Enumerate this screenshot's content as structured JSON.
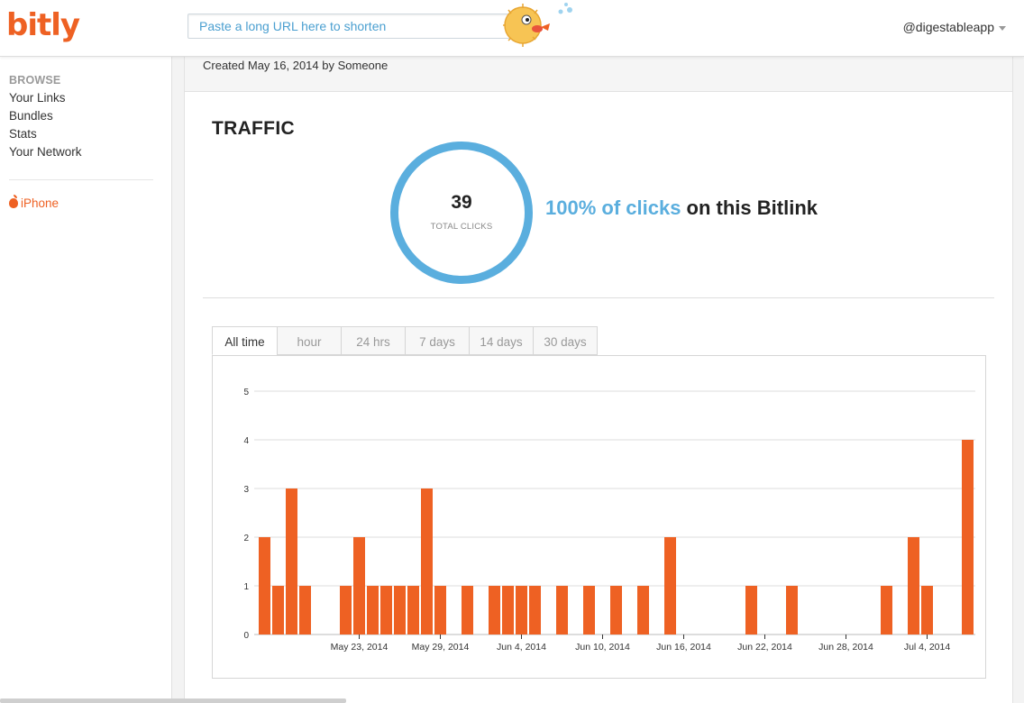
{
  "header": {
    "logo": "bitly",
    "url_placeholder": "Paste a long URL here to shorten",
    "username": "@digestableapp"
  },
  "sidebar": {
    "heading": "BROWSE",
    "items": [
      "Your Links",
      "Bundles",
      "Stats",
      "Your Network"
    ],
    "iphone": "iPhone"
  },
  "main": {
    "created": "Created May 16, 2014 by Someone",
    "traffic_title": "TRAFFIC",
    "total_clicks": "39",
    "total_clicks_label": "TOTAL CLICKS",
    "pct_highlight": "100% of clicks",
    "pct_rest": " on this Bitlink",
    "tabs": [
      "All time",
      "hour",
      "24 hrs",
      "7 days",
      "14 days",
      "30 days"
    ],
    "active_tab": "All time"
  },
  "colors": {
    "accent": "#ee6123",
    "blue": "#5aaede"
  },
  "chart_data": {
    "type": "bar",
    "ylim": [
      0,
      5
    ],
    "yticks": [
      0,
      1,
      2,
      3,
      4,
      5
    ],
    "bar_color": "#ee6123",
    "x_tick_labels": [
      "May 23, 2014",
      "May 29, 2014",
      "Jun 4, 2014",
      "Jun 10, 2014",
      "Jun 16, 2014",
      "Jun 22, 2014",
      "Jun 28, 2014",
      "Jul 4, 2014"
    ],
    "categories": [
      "May 16, 2014",
      "May 17, 2014",
      "May 18, 2014",
      "May 19, 2014",
      "May 20, 2014",
      "May 21, 2014",
      "May 22, 2014",
      "May 23, 2014",
      "May 24, 2014",
      "May 25, 2014",
      "May 26, 2014",
      "May 27, 2014",
      "May 28, 2014",
      "May 29, 2014",
      "May 30, 2014",
      "May 31, 2014",
      "Jun 1, 2014",
      "Jun 2, 2014",
      "Jun 3, 2014",
      "Jun 4, 2014",
      "Jun 5, 2014",
      "Jun 6, 2014",
      "Jun 7, 2014",
      "Jun 8, 2014",
      "Jun 9, 2014",
      "Jun 10, 2014",
      "Jun 11, 2014",
      "Jun 12, 2014",
      "Jun 13, 2014",
      "Jun 14, 2014",
      "Jun 15, 2014",
      "Jun 16, 2014",
      "Jun 17, 2014",
      "Jun 18, 2014",
      "Jun 19, 2014",
      "Jun 20, 2014",
      "Jun 21, 2014",
      "Jun 22, 2014",
      "Jun 23, 2014",
      "Jun 24, 2014",
      "Jun 25, 2014",
      "Jun 26, 2014",
      "Jun 27, 2014",
      "Jun 28, 2014",
      "Jun 29, 2014",
      "Jun 30, 2014",
      "Jul 1, 2014",
      "Jul 2, 2014",
      "Jul 3, 2014",
      "Jul 4, 2014",
      "Jul 5, 2014",
      "Jul 6, 2014",
      "Jul 7, 2014"
    ],
    "values": [
      2,
      1,
      3,
      1,
      0,
      0,
      1,
      2,
      1,
      1,
      1,
      1,
      3,
      1,
      0,
      1,
      0,
      1,
      1,
      1,
      1,
      0,
      1,
      0,
      1,
      0,
      1,
      0,
      1,
      0,
      2,
      0,
      0,
      0,
      0,
      0,
      1,
      0,
      0,
      1,
      0,
      0,
      0,
      0,
      0,
      0,
      1,
      0,
      2,
      1,
      0,
      0,
      4
    ]
  }
}
